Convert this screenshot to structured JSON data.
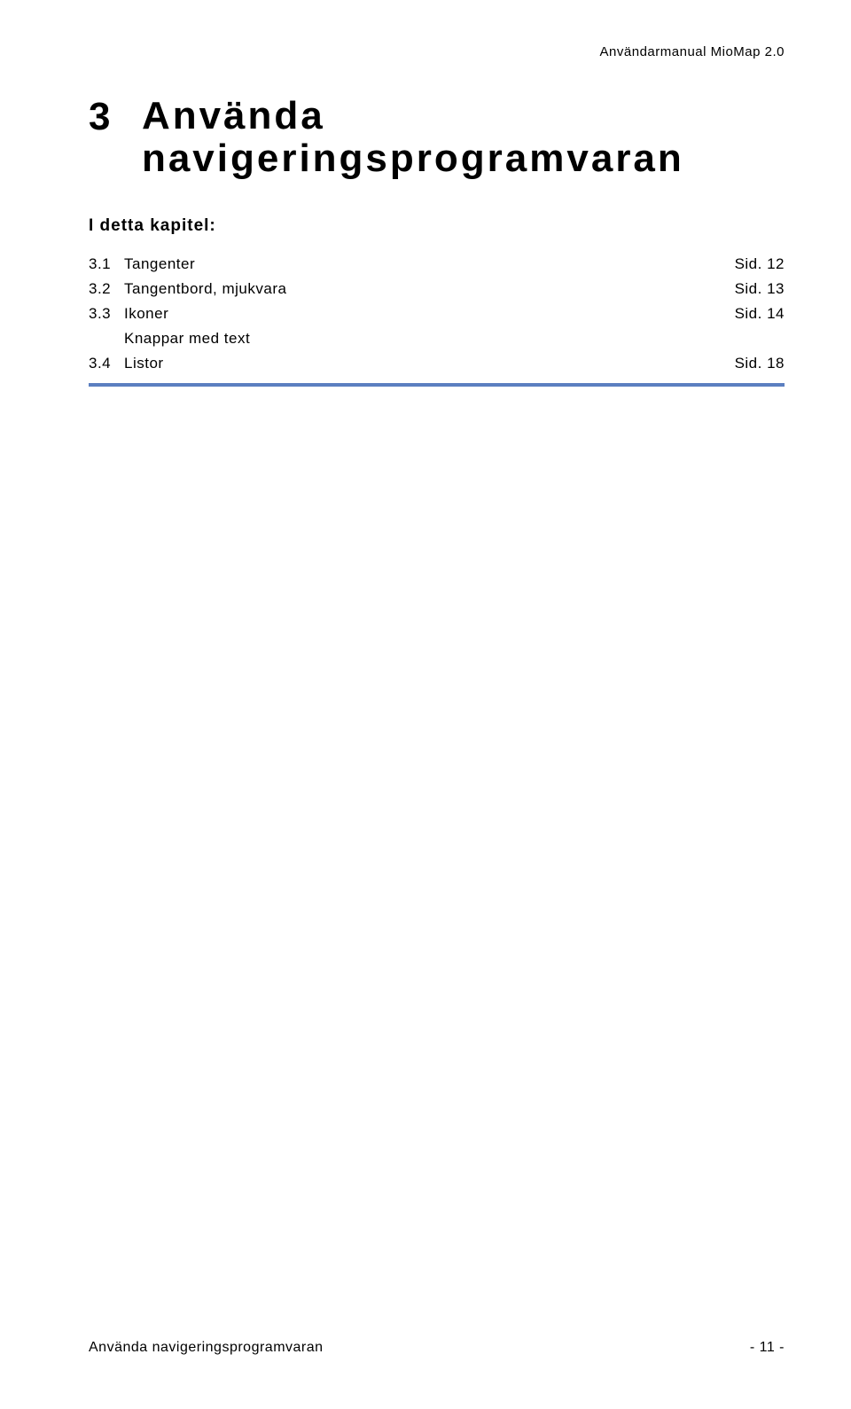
{
  "header": {
    "text": "Användarmanual MioMap 2.0"
  },
  "chapter": {
    "number": "3",
    "title_line1": "Använda",
    "title_line2": "navigeringsprogramvaran"
  },
  "subheading": "I detta kapitel:",
  "toc": {
    "rows": [
      {
        "num": "3.1",
        "label": "Tangenter",
        "page": "Sid. 12"
      },
      {
        "num": "3.2",
        "label": "Tangentbord, mjukvara",
        "page": "Sid. 13"
      },
      {
        "num": "3.3",
        "label": "Ikoner",
        "page": "Sid. 14"
      },
      {
        "num": "",
        "label": "Knappar med text",
        "page": ""
      },
      {
        "num": "3.4",
        "label": "Listor",
        "page": "Sid. 18"
      }
    ]
  },
  "rule": {
    "color": "#5b7fc0"
  },
  "footer": {
    "left": "Använda navigeringsprogramvaran",
    "right": "- 11 -"
  }
}
